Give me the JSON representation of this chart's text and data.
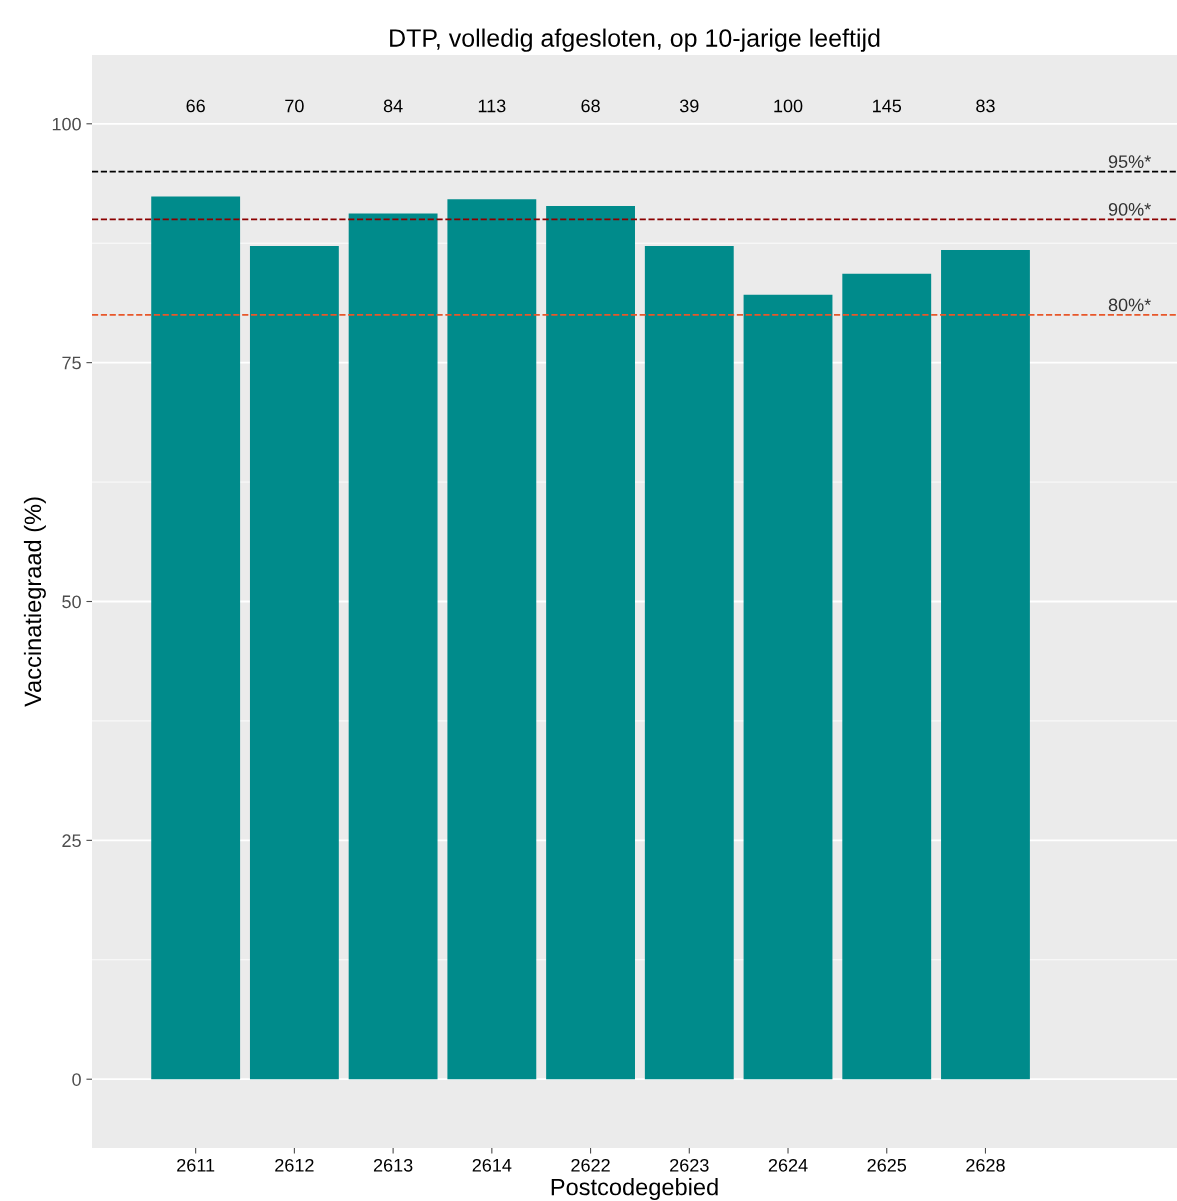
{
  "chart_data": {
    "type": "bar",
    "title": "DTP, volledig afgesloten, op 10-jarige leeftijd",
    "xlabel": "Postcodegebied",
    "ylabel": "Vaccinatiegraad (%)",
    "categories": [
      "2611",
      "2612",
      "2613",
      "2614",
      "2622",
      "2623",
      "2624",
      "2625",
      "2628"
    ],
    "values": [
      92.4,
      87.2,
      90.6,
      92.1,
      91.4,
      87.2,
      82.1,
      84.3,
      86.8
    ],
    "color": "#008b8b",
    "ylim": [
      -7.2,
      107.2
    ],
    "yticks": [
      0,
      25,
      50,
      75,
      100
    ],
    "grid": "y",
    "ref_lines": [
      {
        "axis": "y",
        "value": 95,
        "label": "95%*",
        "color": "#000000",
        "line_style": "dashed"
      },
      {
        "axis": "y",
        "value": 90,
        "label": "90%*",
        "color": "#8b0000",
        "line_style": "dashed"
      },
      {
        "axis": "y",
        "value": 80,
        "label": "80%*",
        "color": "#e8572a",
        "line_style": "dashed"
      }
    ],
    "annotations": [
      "66",
      "70",
      "84",
      "113",
      "68",
      "39",
      "100",
      "145",
      "83"
    ]
  }
}
